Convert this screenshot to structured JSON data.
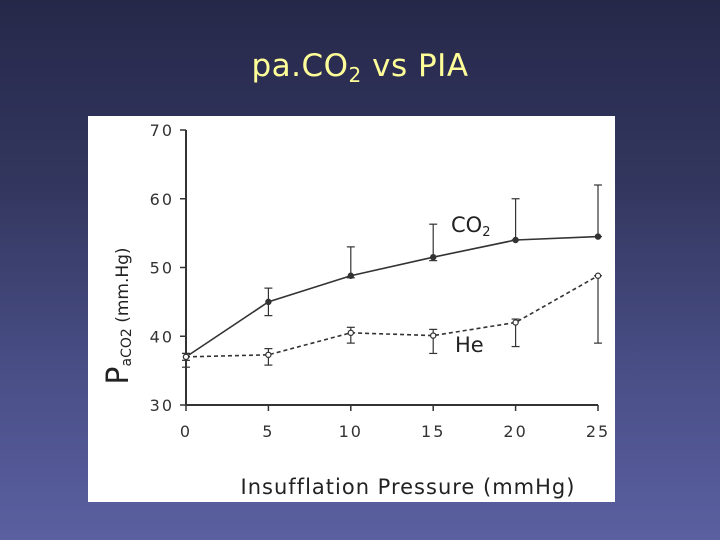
{
  "slide": {
    "title_main": "pa.CO",
    "title_sub": "2",
    "title_rest": " vs PIA"
  },
  "chart_data": {
    "type": "line",
    "xlabel": "Insufflation Pressure (mmHg)",
    "ylabel_big": "P",
    "ylabel_sub": "aCO2",
    "ylabel_rest": " (mm.Hg)",
    "x": [
      0,
      5,
      10,
      15,
      20,
      25
    ],
    "x_ticks": [
      "0",
      "5",
      "10",
      "15",
      "20",
      "25"
    ],
    "y_ticks": [
      "30",
      "40",
      "50",
      "60",
      "70"
    ],
    "xlim": [
      0,
      25
    ],
    "ylim": [
      30,
      70
    ],
    "grid": false,
    "series": [
      {
        "name": "CO",
        "name_sub": "2",
        "style": "solid",
        "marker": "filled",
        "values": [
          37.0,
          45.0,
          48.8,
          51.5,
          54.0,
          54.5
        ],
        "err_upper": [
          37.5,
          47.0,
          53.0,
          56.3,
          60.0,
          62.0
        ],
        "err_lower": [
          36.5,
          43.0,
          48.5,
          51.0,
          54.0,
          54.5
        ]
      },
      {
        "name": "He",
        "style": "dashed",
        "marker": "open",
        "values": [
          37.0,
          37.3,
          40.5,
          40.1,
          42.0,
          48.8
        ],
        "err_upper": [
          37.5,
          38.2,
          41.3,
          41.0,
          42.5,
          48.8
        ],
        "err_lower": [
          35.5,
          35.8,
          39.0,
          37.5,
          38.5,
          39.0
        ]
      }
    ]
  }
}
